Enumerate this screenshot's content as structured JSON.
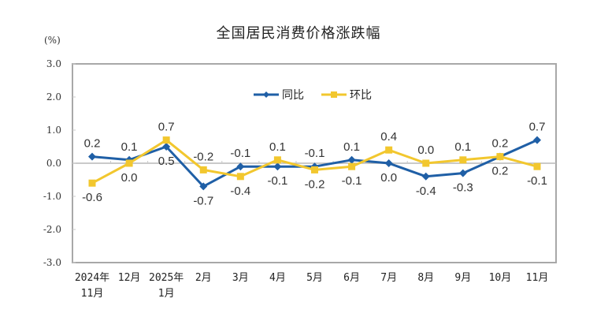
{
  "chart_data": {
    "type": "line",
    "title": "全国居民消费价格涨跌幅",
    "ylabel": "(%)",
    "xlabel": "",
    "ylim": [
      -3.0,
      3.0
    ],
    "yticks": [
      "3.0",
      "2.0",
      "1.0",
      "0.0",
      "-1.0",
      "-2.0",
      "-3.0"
    ],
    "categories": [
      [
        "2024年",
        "11月"
      ],
      [
        "12月"
      ],
      [
        "2025年",
        "1月"
      ],
      [
        "2月"
      ],
      [
        "3月"
      ],
      [
        "4月"
      ],
      [
        "5月"
      ],
      [
        "6月"
      ],
      [
        "7月"
      ],
      [
        "8月"
      ],
      [
        "9月"
      ],
      [
        "10月"
      ],
      [
        "11月"
      ]
    ],
    "series": [
      {
        "name": "同比",
        "color": "#1F5FA6",
        "marker": "diamond",
        "values": [
          0.2,
          0.1,
          0.5,
          -0.7,
          -0.1,
          -0.1,
          -0.1,
          0.1,
          0.0,
          -0.4,
          -0.3,
          0.2,
          0.7
        ]
      },
      {
        "name": "环比",
        "color": "#F2C72E",
        "marker": "square",
        "values": [
          -0.6,
          0.0,
          0.7,
          -0.2,
          -0.4,
          0.1,
          -0.2,
          -0.1,
          0.4,
          0.0,
          0.1,
          0.2,
          -0.1
        ]
      }
    ],
    "legend_position": "top-center inside plot",
    "grid": false
  }
}
